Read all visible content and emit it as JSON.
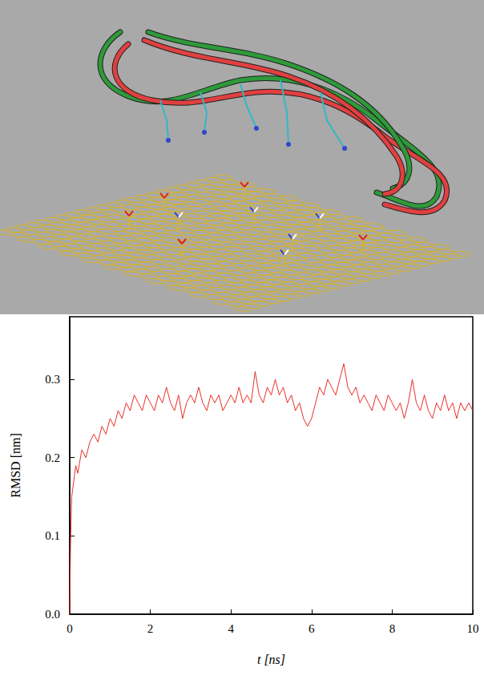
{
  "chart_data": {
    "type": "line",
    "xlabel": "t [ns]",
    "ylabel": "RMSD [nm]",
    "x": [
      0,
      0.02,
      0.05,
      0.1,
      0.15,
      0.2,
      0.3,
      0.4,
      0.5,
      0.6,
      0.7,
      0.8,
      0.9,
      1.0,
      1.1,
      1.2,
      1.3,
      1.4,
      1.5,
      1.6,
      1.7,
      1.8,
      1.9,
      2.0,
      2.1,
      2.2,
      2.3,
      2.4,
      2.5,
      2.6,
      2.7,
      2.8,
      2.9,
      3.0,
      3.1,
      3.2,
      3.3,
      3.4,
      3.5,
      3.6,
      3.7,
      3.8,
      3.9,
      4.0,
      4.1,
      4.2,
      4.3,
      4.4,
      4.5,
      4.6,
      4.7,
      4.8,
      4.9,
      5.0,
      5.1,
      5.2,
      5.3,
      5.4,
      5.5,
      5.6,
      5.7,
      5.8,
      5.9,
      6.0,
      6.1,
      6.2,
      6.3,
      6.4,
      6.5,
      6.6,
      6.7,
      6.8,
      6.9,
      7.0,
      7.1,
      7.2,
      7.3,
      7.4,
      7.5,
      7.6,
      7.7,
      7.8,
      7.9,
      8.0,
      8.1,
      8.2,
      8.3,
      8.4,
      8.5,
      8.6,
      8.7,
      8.8,
      8.9,
      9.0,
      9.1,
      9.2,
      9.3,
      9.4,
      9.5,
      9.6,
      9.7,
      9.8,
      9.9,
      10.0
    ],
    "values": [
      0.0,
      0.09,
      0.15,
      0.17,
      0.19,
      0.18,
      0.21,
      0.2,
      0.22,
      0.23,
      0.22,
      0.24,
      0.23,
      0.25,
      0.24,
      0.26,
      0.25,
      0.27,
      0.26,
      0.28,
      0.27,
      0.26,
      0.28,
      0.27,
      0.26,
      0.28,
      0.27,
      0.29,
      0.27,
      0.26,
      0.28,
      0.25,
      0.27,
      0.28,
      0.27,
      0.29,
      0.27,
      0.26,
      0.28,
      0.27,
      0.28,
      0.26,
      0.27,
      0.28,
      0.27,
      0.29,
      0.27,
      0.28,
      0.27,
      0.31,
      0.28,
      0.27,
      0.29,
      0.28,
      0.3,
      0.28,
      0.29,
      0.27,
      0.28,
      0.26,
      0.27,
      0.25,
      0.24,
      0.25,
      0.27,
      0.29,
      0.28,
      0.3,
      0.29,
      0.28,
      0.3,
      0.32,
      0.29,
      0.28,
      0.29,
      0.27,
      0.28,
      0.27,
      0.26,
      0.28,
      0.27,
      0.26,
      0.28,
      0.27,
      0.26,
      0.27,
      0.25,
      0.27,
      0.3,
      0.27,
      0.26,
      0.28,
      0.26,
      0.25,
      0.27,
      0.26,
      0.28,
      0.26,
      0.27,
      0.25,
      0.27,
      0.26,
      0.27,
      0.26
    ],
    "color": "#e8302a",
    "xlim": [
      0,
      10
    ],
    "xticks": [
      0,
      2,
      4,
      6,
      8,
      10
    ],
    "ylim": [
      0,
      0.38
    ],
    "yticks": [
      {
        "value": 0,
        "label": "0.0"
      },
      0.1,
      0.2,
      0.3
    ],
    "grid": false
  }
}
